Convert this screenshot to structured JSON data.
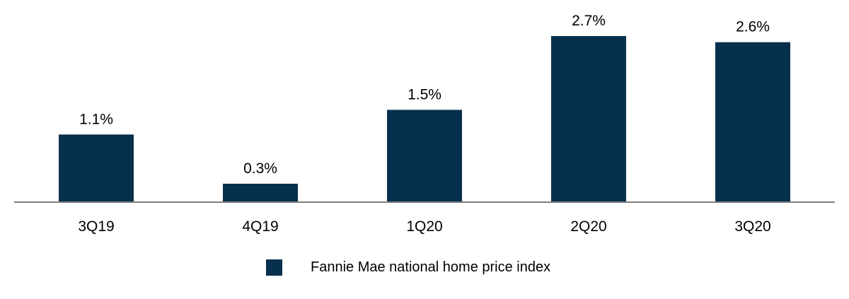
{
  "chart_data": {
    "type": "bar",
    "categories": [
      "3Q19",
      "4Q19",
      "1Q20",
      "2Q20",
      "3Q20"
    ],
    "series": [
      {
        "name": "Fannie Mae national home price index",
        "values": [
          1.1,
          0.3,
          1.5,
          2.7,
          2.6
        ],
        "labels": [
          "1.1%",
          "0.3%",
          "1.5%",
          "2.7%",
          "2.6%"
        ]
      }
    ],
    "title": "",
    "xlabel": "",
    "ylabel": "",
    "ylim": [
      0,
      2.7
    ],
    "grid": false,
    "legend_position": "bottom-center",
    "colors": {
      "bar": "#07304d",
      "axis": "#7f7f7f",
      "text": "#000000"
    }
  }
}
